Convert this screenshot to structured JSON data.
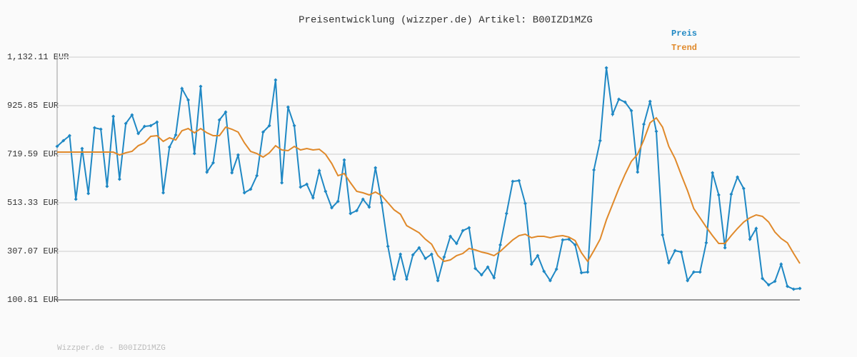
{
  "chart_data": {
    "type": "line",
    "title": "Preisentwicklung (wizzper.de) Artikel: B00IZD1MZG",
    "ylim": [
      100.81,
      1132.11
    ],
    "yticks": [
      {
        "value": 100.81,
        "label": "100.81 EUR"
      },
      {
        "value": 307.07,
        "label": "307.07 EUR"
      },
      {
        "value": 513.33,
        "label": "513.33 EUR"
      },
      {
        "value": 719.59,
        "label": "719.59 EUR"
      },
      {
        "value": 925.85,
        "label": "925.85 EUR"
      },
      {
        "value": 1132.11,
        "label": "1,132.11 EUR"
      }
    ],
    "grid": true,
    "legend": "top-right",
    "series": [
      {
        "name": "Preis",
        "color": "#1f88c4",
        "markers": true,
        "values": [
          752.9,
          777.2,
          798.4,
          528.5,
          743.8,
          552.7,
          831.8,
          825.7,
          583.0,
          880.3,
          613.4,
          850.0,
          886.3,
          807.5,
          837.8,
          840.9,
          856.0,
          555.8,
          749.9,
          801.4,
          998.6,
          950.0,
          722.6,
          1007.7,
          643.7,
          683.1,
          865.1,
          898.5,
          640.7,
          716.5,
          555.8,
          570.9,
          628.5,
          813.6,
          840.9,
          1035.0,
          598.2,
          919.7,
          840.9,
          580.0,
          592.1,
          534.5,
          649.8,
          561.8,
          492.1,
          519.4,
          695.3,
          467.8,
          479.9,
          528.5,
          495.1,
          661.9,
          513.3,
          328.3,
          188.8,
          294.9,
          188.8,
          291.9,
          322.2,
          276.7,
          294.9,
          182.7,
          282.8,
          370.7,
          340.4,
          395.0,
          407.1,
          234.3,
          207.0,
          240.3,
          194.8,
          334.3,
          467.8,
          604.3,
          607.3,
          510.3,
          252.5,
          288.8,
          222.1,
          182.7,
          231.2,
          355.6,
          358.6,
          334.3,
          216.1,
          219.1,
          652.8,
          777.2,
          1086.5,
          889.4,
          953.1,
          940.9,
          904.5,
          643.7,
          846.9,
          944.0,
          816.6,
          376.8,
          258.5,
          310.1,
          304.0,
          182.7,
          219.1,
          219.1,
          343.4,
          640.7,
          546.7,
          322.2,
          549.7,
          622.5,
          573.9,
          358.6,
          404.1,
          191.8,
          164.5,
          179.7,
          252.5,
          158.4,
          146.3,
          149.3
        ]
      },
      {
        "name": "Trend",
        "color": "#e0892a",
        "markers": false,
        "values": [
          728.6,
          728.6,
          728.6,
          728.6,
          728.6,
          728.6,
          728.6,
          728.6,
          728.6,
          728.6,
          716.5,
          725.6,
          731.7,
          755.9,
          768.1,
          795.4,
          798.4,
          774.1,
          789.3,
          780.2,
          819.6,
          828.7,
          810.5,
          828.7,
          810.5,
          798.4,
          798.4,
          834.8,
          825.7,
          813.6,
          768.1,
          731.7,
          722.6,
          707.4,
          725.6,
          755.9,
          737.7,
          734.7,
          752.9,
          737.7,
          743.8,
          737.7,
          740.8,
          719.5,
          680.1,
          628.5,
          637.6,
          598.2,
          561.8,
          555.8,
          546.7,
          558.8,
          543.6,
          513.3,
          483.0,
          464.8,
          416.2,
          401.1,
          385.9,
          358.6,
          337.4,
          288.8,
          264.6,
          270.6,
          288.8,
          297.9,
          319.2,
          313.1,
          304.0,
          297.9,
          288.8,
          307.0,
          331.3,
          355.6,
          373.8,
          379.8,
          364.7,
          370.7,
          370.7,
          364.7,
          370.7,
          373.8,
          367.7,
          352.5,
          301.0,
          264.6,
          310.1,
          358.6,
          440.5,
          507.2,
          573.9,
          634.6,
          689.2,
          719.5,
          780.2,
          853.0,
          874.2,
          834.8,
          752.9,
          701.3,
          631.6,
          564.8,
          489.0,
          449.6,
          410.2,
          373.8,
          340.4,
          340.4,
          373.8,
          404.1,
          431.4,
          449.6,
          461.7,
          455.7,
          431.4,
          388.9,
          361.6,
          343.4,
          297.9,
          255.5
        ]
      }
    ]
  },
  "footer": "Wizzper.de - B00IZD1MZG"
}
